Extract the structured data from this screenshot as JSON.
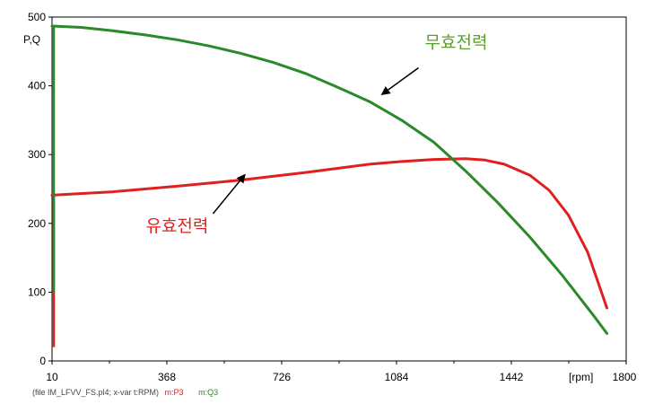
{
  "chart_data": {
    "type": "line",
    "ylabel": "P,Q",
    "xlabel": "[rpm]",
    "xlim": [
      10,
      1800
    ],
    "ylim": [
      0,
      500
    ],
    "x_ticks": [
      10,
      368,
      726,
      1084,
      1442,
      1800
    ],
    "y_ticks": [
      0,
      100,
      200,
      300,
      400,
      500
    ],
    "grid": false,
    "series": [
      {
        "name": "m:P3",
        "color": "#e02020",
        "x": [
          10,
          200,
          400,
          600,
          800,
          1000,
          1100,
          1200,
          1300,
          1360,
          1420,
          1500,
          1560,
          1620,
          1680,
          1740
        ],
        "y": [
          241,
          246,
          254,
          263,
          274,
          286,
          290,
          293,
          294,
          292,
          286,
          270,
          248,
          212,
          158,
          77
        ]
      },
      {
        "name": "m:Q3",
        "color": "#2a8a2a",
        "x": [
          10,
          100,
          200,
          300,
          400,
          500,
          600,
          700,
          800,
          900,
          1000,
          1100,
          1200,
          1300,
          1400,
          1500,
          1600,
          1700,
          1740
        ],
        "y": [
          487,
          485,
          480,
          474,
          467,
          458,
          447,
          434,
          418,
          398,
          377,
          350,
          318,
          276,
          230,
          180,
          125,
          65,
          40
        ]
      }
    ],
    "annotations": [
      {
        "text": "무효전력",
        "color": "#5aa02c",
        "x": 1270,
        "y": 455,
        "arrow_to_x": 1040,
        "arrow_to_y": 388
      },
      {
        "text": "유효전력",
        "color": "#e02020",
        "x": 400,
        "y": 188,
        "arrow_to_x": 610,
        "arrow_to_y": 270
      }
    ]
  },
  "footer": {
    "file_text": "(file IM_LFVV_FS.pl4; x-var t:RPM)",
    "m1": "m:P3",
    "m2": "m:Q3"
  }
}
